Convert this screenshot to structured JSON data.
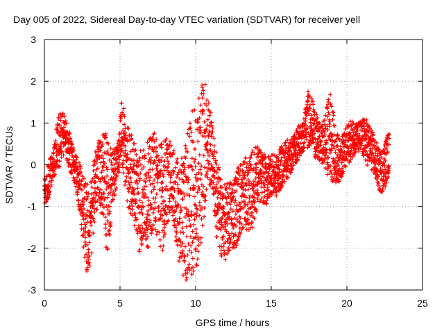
{
  "chart_data": {
    "type": "scatter",
    "title": "Day 005 of 2022, Sidereal Day-to-day VTEC variation (SDTVAR) for receiver yell",
    "xlabel": "GPS time / hours",
    "ylabel": "SDTVAR / TECUs",
    "xlim": [
      0,
      25
    ],
    "ylim": [
      -3,
      3
    ],
    "xticks": [
      "0",
      "5",
      "10",
      "15",
      "20",
      "25"
    ],
    "yticks": [
      "-3",
      "-2",
      "-1",
      "0",
      "1",
      "2",
      "3"
    ],
    "grid": true,
    "marker": "plus",
    "series": [
      {
        "name": "SDTVAR",
        "color": "#ff0000",
        "envelope": {
          "x": [
            0.0,
            0.3,
            0.6,
            0.9,
            1.2,
            1.5,
            1.8,
            2.1,
            2.4,
            2.7,
            3.0,
            3.3,
            3.6,
            3.9,
            4.2,
            4.5,
            4.8,
            5.1,
            5.4,
            5.7,
            6.0,
            6.3,
            6.6,
            6.9,
            7.2,
            7.5,
            7.8,
            8.1,
            8.4,
            8.7,
            9.0,
            9.3,
            9.6,
            9.9,
            10.2,
            10.5,
            10.8,
            11.1,
            11.4,
            11.7,
            12.0,
            12.3,
            12.6,
            12.9,
            13.2,
            13.5,
            13.8,
            14.1,
            14.4,
            14.7,
            15.0,
            15.3,
            15.6,
            15.9,
            16.2,
            16.5,
            16.8,
            17.1,
            17.4,
            17.7,
            18.0,
            18.3,
            18.6,
            18.9,
            19.2,
            19.5,
            19.8,
            20.1,
            20.4,
            20.7,
            21.0,
            21.3,
            21.6,
            21.9,
            22.2,
            22.5,
            22.8
          ],
          "lo": [
            -1.0,
            -0.8,
            -0.3,
            -0.2,
            0.2,
            0.1,
            -0.3,
            -0.6,
            -1.3,
            -2.5,
            -2.8,
            -1.5,
            -0.8,
            -1.5,
            -2.3,
            -1.0,
            -0.5,
            0.0,
            -0.9,
            -1.2,
            -1.5,
            -2.2,
            -1.9,
            -2.0,
            -1.5,
            -1.8,
            -2.1,
            -1.5,
            -1.0,
            -2.0,
            -2.5,
            -2.8,
            -2.7,
            -2.6,
            -2.3,
            -1.5,
            -0.5,
            -0.6,
            -1.9,
            -2.2,
            -2.3,
            -2.1,
            -2.0,
            -1.8,
            -1.5,
            -1.6,
            -1.5,
            -1.0,
            -0.9,
            -1.0,
            -0.7,
            -0.8,
            -0.6,
            -0.4,
            -0.3,
            0.0,
            0.1,
            0.3,
            0.4,
            0.5,
            0.0,
            0.1,
            -0.2,
            -0.3,
            -0.5,
            -0.4,
            -0.2,
            0.0,
            0.2,
            0.3,
            0.2,
            0.0,
            -0.1,
            -0.4,
            -0.7,
            -0.6,
            -0.2
          ],
          "hi": [
            -0.3,
            0.1,
            0.3,
            1.2,
            1.3,
            1.0,
            0.6,
            0.2,
            0.0,
            -0.4,
            -0.5,
            0.2,
            0.6,
            0.8,
            0.7,
            0.4,
            0.5,
            1.5,
            1.2,
            0.8,
            0.6,
            0.5,
            0.4,
            0.6,
            0.8,
            0.7,
            0.6,
            0.7,
            0.5,
            0.2,
            0.0,
            0.6,
            1.0,
            1.5,
            1.8,
            2.2,
            1.8,
            1.0,
            0.3,
            -0.4,
            -0.5,
            -0.3,
            -0.2,
            0.1,
            0.2,
            0.1,
            0.4,
            0.5,
            0.3,
            0.2,
            0.3,
            0.2,
            0.4,
            0.6,
            0.6,
            0.7,
            1.0,
            1.0,
            1.8,
            1.6,
            1.2,
            0.9,
            1.3,
            1.8,
            1.0,
            0.6,
            0.8,
            1.0,
            1.1,
            1.0,
            1.1,
            1.1,
            0.9,
            0.6,
            0.3,
            0.6,
            0.8
          ]
        }
      }
    ]
  }
}
